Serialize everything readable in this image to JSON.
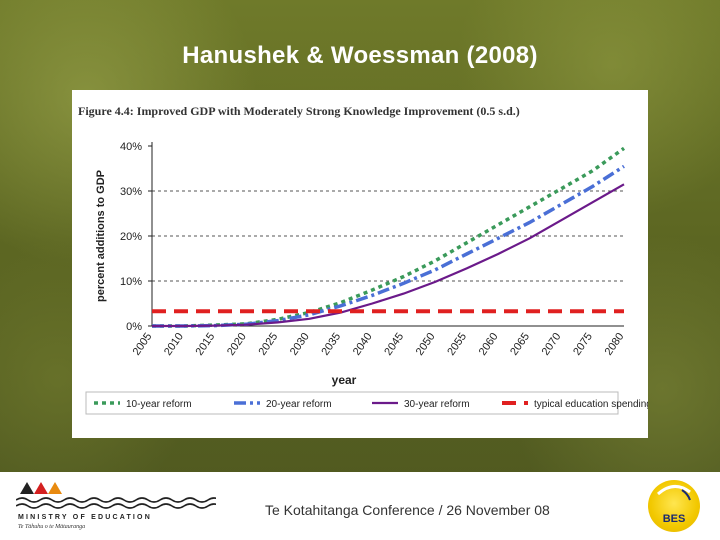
{
  "slide": {
    "title": "Hanushek & Woessman (2008)"
  },
  "figure": {
    "title": "Figure 4.4: Improved GDP with Moderately Strong Knowledge Improvement (0.5 s.d.)"
  },
  "footer": {
    "ministry_name": "MINISTRY OF EDUCATION",
    "ministry_subtitle": "Te Tāhuhu o te Mātauranga",
    "conference": "Te Kotahitanga Conference / 26 November 08",
    "logo_text": "BES"
  },
  "chart_data": {
    "type": "line",
    "title": "Figure 4.4: Improved GDP with Moderately Strong Knowledge Improvement (0.5 s.d.)",
    "xlabel": "year",
    "ylabel": "percent additions to GDP",
    "x": [
      2005,
      2010,
      2015,
      2020,
      2025,
      2030,
      2035,
      2040,
      2045,
      2050,
      2055,
      2060,
      2065,
      2070,
      2075,
      2080
    ],
    "x_tick_labels": [
      "2005",
      "2010",
      "2015",
      "2020",
      "2025",
      "2030",
      "2035",
      "2040",
      "2045",
      "2050",
      "2055",
      "2060",
      "2065",
      "2070",
      "2075",
      "2080"
    ],
    "y_tick_labels": [
      "0%",
      "10%",
      "20%",
      "30%",
      "40%"
    ],
    "ylim": [
      0,
      40
    ],
    "grid": "horizontal dashed at 10%, 20%, 30%",
    "legend_position": "bottom",
    "series": [
      {
        "name": "10-year reform",
        "color": "#3a9a5a",
        "dash": "dotted",
        "values": [
          0,
          0,
          0.2,
          0.5,
          1.5,
          3.0,
          5.2,
          8.0,
          11.0,
          14.5,
          18.5,
          22.5,
          26.5,
          30.5,
          34.5,
          39.5
        ]
      },
      {
        "name": "20-year reform",
        "color": "#4a6fd6",
        "dash": "dashdot",
        "values": [
          0,
          0,
          0.1,
          0.4,
          1.2,
          2.5,
          4.5,
          6.8,
          9.5,
          12.5,
          16.0,
          19.5,
          23.0,
          27.0,
          31.0,
          35.5
        ]
      },
      {
        "name": "30-year reform",
        "color": "#6b1a8a",
        "dash": "solid",
        "values": [
          0,
          0,
          0.1,
          0.3,
          0.8,
          1.6,
          3.0,
          5.0,
          7.2,
          9.8,
          12.8,
          16.0,
          19.5,
          23.5,
          27.5,
          31.5
        ]
      },
      {
        "name": "typical education spending",
        "color": "#e02020",
        "dash": "dashed",
        "values": [
          3.3,
          3.3,
          3.3,
          3.3,
          3.3,
          3.3,
          3.3,
          3.3,
          3.3,
          3.3,
          3.3,
          3.3,
          3.3,
          3.3,
          3.3,
          3.3
        ]
      }
    ]
  }
}
